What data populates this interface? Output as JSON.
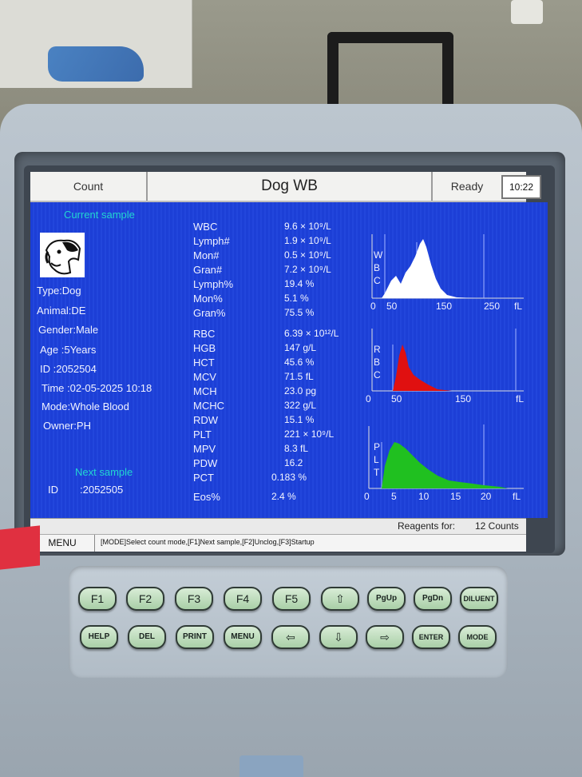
{
  "titlebar": {
    "count": "Count",
    "title": "Dog  WB",
    "ready": "Ready",
    "time": "10:22"
  },
  "sample": {
    "current_label": "Current sample",
    "type": "Type:Dog",
    "animal": "Animal:DE",
    "gender": "Gender:Male",
    "age": "Age  :5Years",
    "id": "ID      :2052504",
    "time": "Time :02-05-2025 10:18",
    "mode": "Mode:Whole Blood",
    "owner": "Owner:PH",
    "next_label": "Next sample",
    "next_id_label": "ID",
    "next_id": ":2052505"
  },
  "params": [
    {
      "name": "WBC",
      "value": "9.6 × 10⁹/L"
    },
    {
      "name": "Lymph#",
      "value": "1.9 × 10⁹/L"
    },
    {
      "name": "Mon#",
      "value": "0.5 × 10⁹/L"
    },
    {
      "name": "Gran#",
      "value": "7.2 × 10⁹/L"
    },
    {
      "name": "Lymph%",
      "value": "19.4 %"
    },
    {
      "name": "Mon%",
      "value": "5.1 %"
    },
    {
      "name": "Gran%",
      "value": "75.5 %"
    },
    {
      "name": "RBC",
      "value": "6.39 × 10¹²/L"
    },
    {
      "name": "HGB",
      "value": "147 g/L"
    },
    {
      "name": "HCT",
      "value": "45.6 %"
    },
    {
      "name": "MCV",
      "value": "71.5 fL"
    },
    {
      "name": "MCH",
      "value": "23.0 pg"
    },
    {
      "name": "MCHC",
      "value": "322 g/L"
    },
    {
      "name": "RDW",
      "value": "15.1 %"
    },
    {
      "name": "PLT",
      "value": "221 × 10⁹/L"
    },
    {
      "name": "MPV",
      "value": "8.3 fL"
    },
    {
      "name": "PDW",
      "value": "16.2"
    },
    {
      "name": "PCT",
      "value": "0.183 %"
    },
    {
      "name": "Eos%",
      "value": "2.4 %"
    }
  ],
  "histograms": {
    "wbc": {
      "label": [
        "W",
        "B",
        "C"
      ],
      "ticks": [
        "0",
        "50",
        "150",
        "250"
      ],
      "unit": "fL",
      "color": "#ffffff"
    },
    "rbc": {
      "label": [
        "R",
        "B",
        "C"
      ],
      "ticks": [
        "0",
        "50",
        "150"
      ],
      "unit": "fL",
      "color": "#e01010"
    },
    "plt": {
      "label": [
        "P",
        "L",
        "T"
      ],
      "ticks": [
        "0",
        "5",
        "10",
        "15",
        "20"
      ],
      "unit": "fL",
      "color": "#20c020"
    }
  },
  "reagent": {
    "label": "Reagents for:",
    "value": "12 Counts"
  },
  "statusbar": {
    "menu": "MENU",
    "hint": "[MODE]Select count mode,[F1]Next sample,[F2]Unclog,[F3]Startup"
  },
  "keys_row1": [
    "F1",
    "F2",
    "F3",
    "F4",
    "F5",
    "⇧",
    "PgUp",
    "PgDn",
    "DILUENT"
  ],
  "keys_row2": [
    "HELP",
    "DEL",
    "PRINT",
    "MENU",
    "⇦",
    "⇩",
    "⇨",
    "ENTER",
    "MODE"
  ]
}
